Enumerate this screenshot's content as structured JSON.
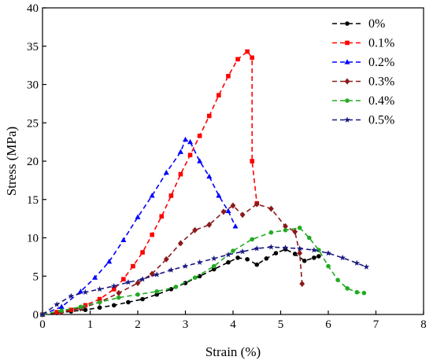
{
  "chart_data": {
    "type": "line",
    "title": "",
    "xlabel": "Strain (%)",
    "ylabel": "Stress (MPa)",
    "xlim": [
      0,
      8
    ],
    "ylim": [
      0,
      40
    ],
    "xticks": [
      "0",
      "1",
      "2",
      "3",
      "4",
      "5",
      "6",
      "7",
      "8"
    ],
    "yticks": [
      "0",
      "5",
      "10",
      "15",
      "20",
      "25",
      "30",
      "35",
      "40"
    ],
    "grid": false,
    "legend_position": "top-right",
    "series": [
      {
        "name": "0%",
        "color": "#000000",
        "marker": "circle",
        "x": [
          0,
          0.3,
          0.6,
          0.9,
          1.2,
          1.5,
          1.8,
          2.1,
          2.4,
          2.7,
          3.0,
          3.3,
          3.6,
          3.9,
          4.1,
          4.3,
          4.5,
          4.7,
          4.9,
          5.1,
          5.3,
          5.5,
          5.7,
          5.8
        ],
        "y": [
          0,
          0.2,
          0.4,
          0.6,
          0.9,
          1.2,
          1.6,
          2.0,
          2.6,
          3.3,
          4.1,
          5.0,
          5.9,
          6.8,
          7.4,
          7.2,
          6.5,
          7.3,
          8.0,
          8.5,
          7.9,
          7.0,
          7.4,
          7.6
        ]
      },
      {
        "name": "0.1%",
        "color": "#ff0000",
        "marker": "square",
        "x": [
          0,
          0.3,
          0.6,
          0.9,
          1.2,
          1.5,
          1.7,
          1.9,
          2.1,
          2.3,
          2.5,
          2.7,
          2.9,
          3.1,
          3.3,
          3.5,
          3.7,
          3.9,
          4.1,
          4.3,
          4.4,
          4.4,
          4.5
        ],
        "y": [
          0,
          0.3,
          0.6,
          1.2,
          2.0,
          3.3,
          4.6,
          6.3,
          8.1,
          10.4,
          12.8,
          15.5,
          18.3,
          20.8,
          23.3,
          25.9,
          28.6,
          31.1,
          33.3,
          34.3,
          33.5,
          20.0,
          14.5
        ]
      },
      {
        "name": "0.2%",
        "color": "#0000ff",
        "marker": "triangle",
        "x": [
          0,
          0.4,
          0.8,
          1.1,
          1.4,
          1.7,
          2.0,
          2.3,
          2.6,
          2.9,
          3.0,
          3.1,
          3.3,
          3.5,
          3.7,
          3.9,
          4.05
        ],
        "y": [
          0,
          1.0,
          3.0,
          4.8,
          6.9,
          9.7,
          12.7,
          15.5,
          18.5,
          21.2,
          22.8,
          22.5,
          20.0,
          18.0,
          15.5,
          13.5,
          11.5
        ]
      },
      {
        "name": "0.3%",
        "color": "#8b1a1a",
        "marker": "diamond",
        "x": [
          0,
          0.4,
          0.8,
          1.2,
          1.6,
          2.0,
          2.3,
          2.6,
          2.9,
          3.2,
          3.5,
          3.8,
          4.0,
          4.2,
          4.5,
          4.8,
          5.1,
          5.3,
          5.4,
          5.45
        ],
        "y": [
          0,
          0.3,
          0.8,
          1.6,
          2.8,
          4.1,
          5.3,
          7.2,
          9.3,
          11.0,
          11.7,
          13.4,
          14.2,
          13.0,
          14.4,
          13.8,
          11.5,
          10.8,
          8.0,
          4.0
        ]
      },
      {
        "name": "0.4%",
        "color": "#22aa22",
        "marker": "circle",
        "x": [
          0,
          0.4,
          0.8,
          1.2,
          1.6,
          2.0,
          2.4,
          2.8,
          3.2,
          3.6,
          4.0,
          4.4,
          4.8,
          5.1,
          5.4,
          5.6,
          5.8,
          6.0,
          6.2,
          6.4,
          6.6,
          6.75
        ],
        "y": [
          0,
          0.5,
          1.0,
          1.6,
          2.2,
          2.6,
          3.0,
          3.6,
          4.8,
          6.3,
          8.3,
          9.8,
          10.7,
          11.0,
          11.3,
          10.0,
          8.4,
          6.3,
          4.5,
          3.4,
          2.9,
          2.8
        ]
      },
      {
        "name": "0.5%",
        "color": "#1a1a80",
        "marker": "star",
        "x": [
          0,
          0.3,
          0.6,
          0.9,
          1.2,
          1.5,
          1.8,
          2.1,
          2.4,
          2.7,
          3.0,
          3.3,
          3.6,
          3.9,
          4.2,
          4.5,
          4.8,
          5.1,
          5.4,
          5.7,
          6.0,
          6.3,
          6.6,
          6.8
        ],
        "y": [
          0,
          1.3,
          2.4,
          2.9,
          3.3,
          3.7,
          4.2,
          4.6,
          5.2,
          5.8,
          6.3,
          6.8,
          7.3,
          7.8,
          8.2,
          8.6,
          8.8,
          8.7,
          8.6,
          8.4,
          8.0,
          7.4,
          6.7,
          6.2
        ]
      }
    ]
  }
}
